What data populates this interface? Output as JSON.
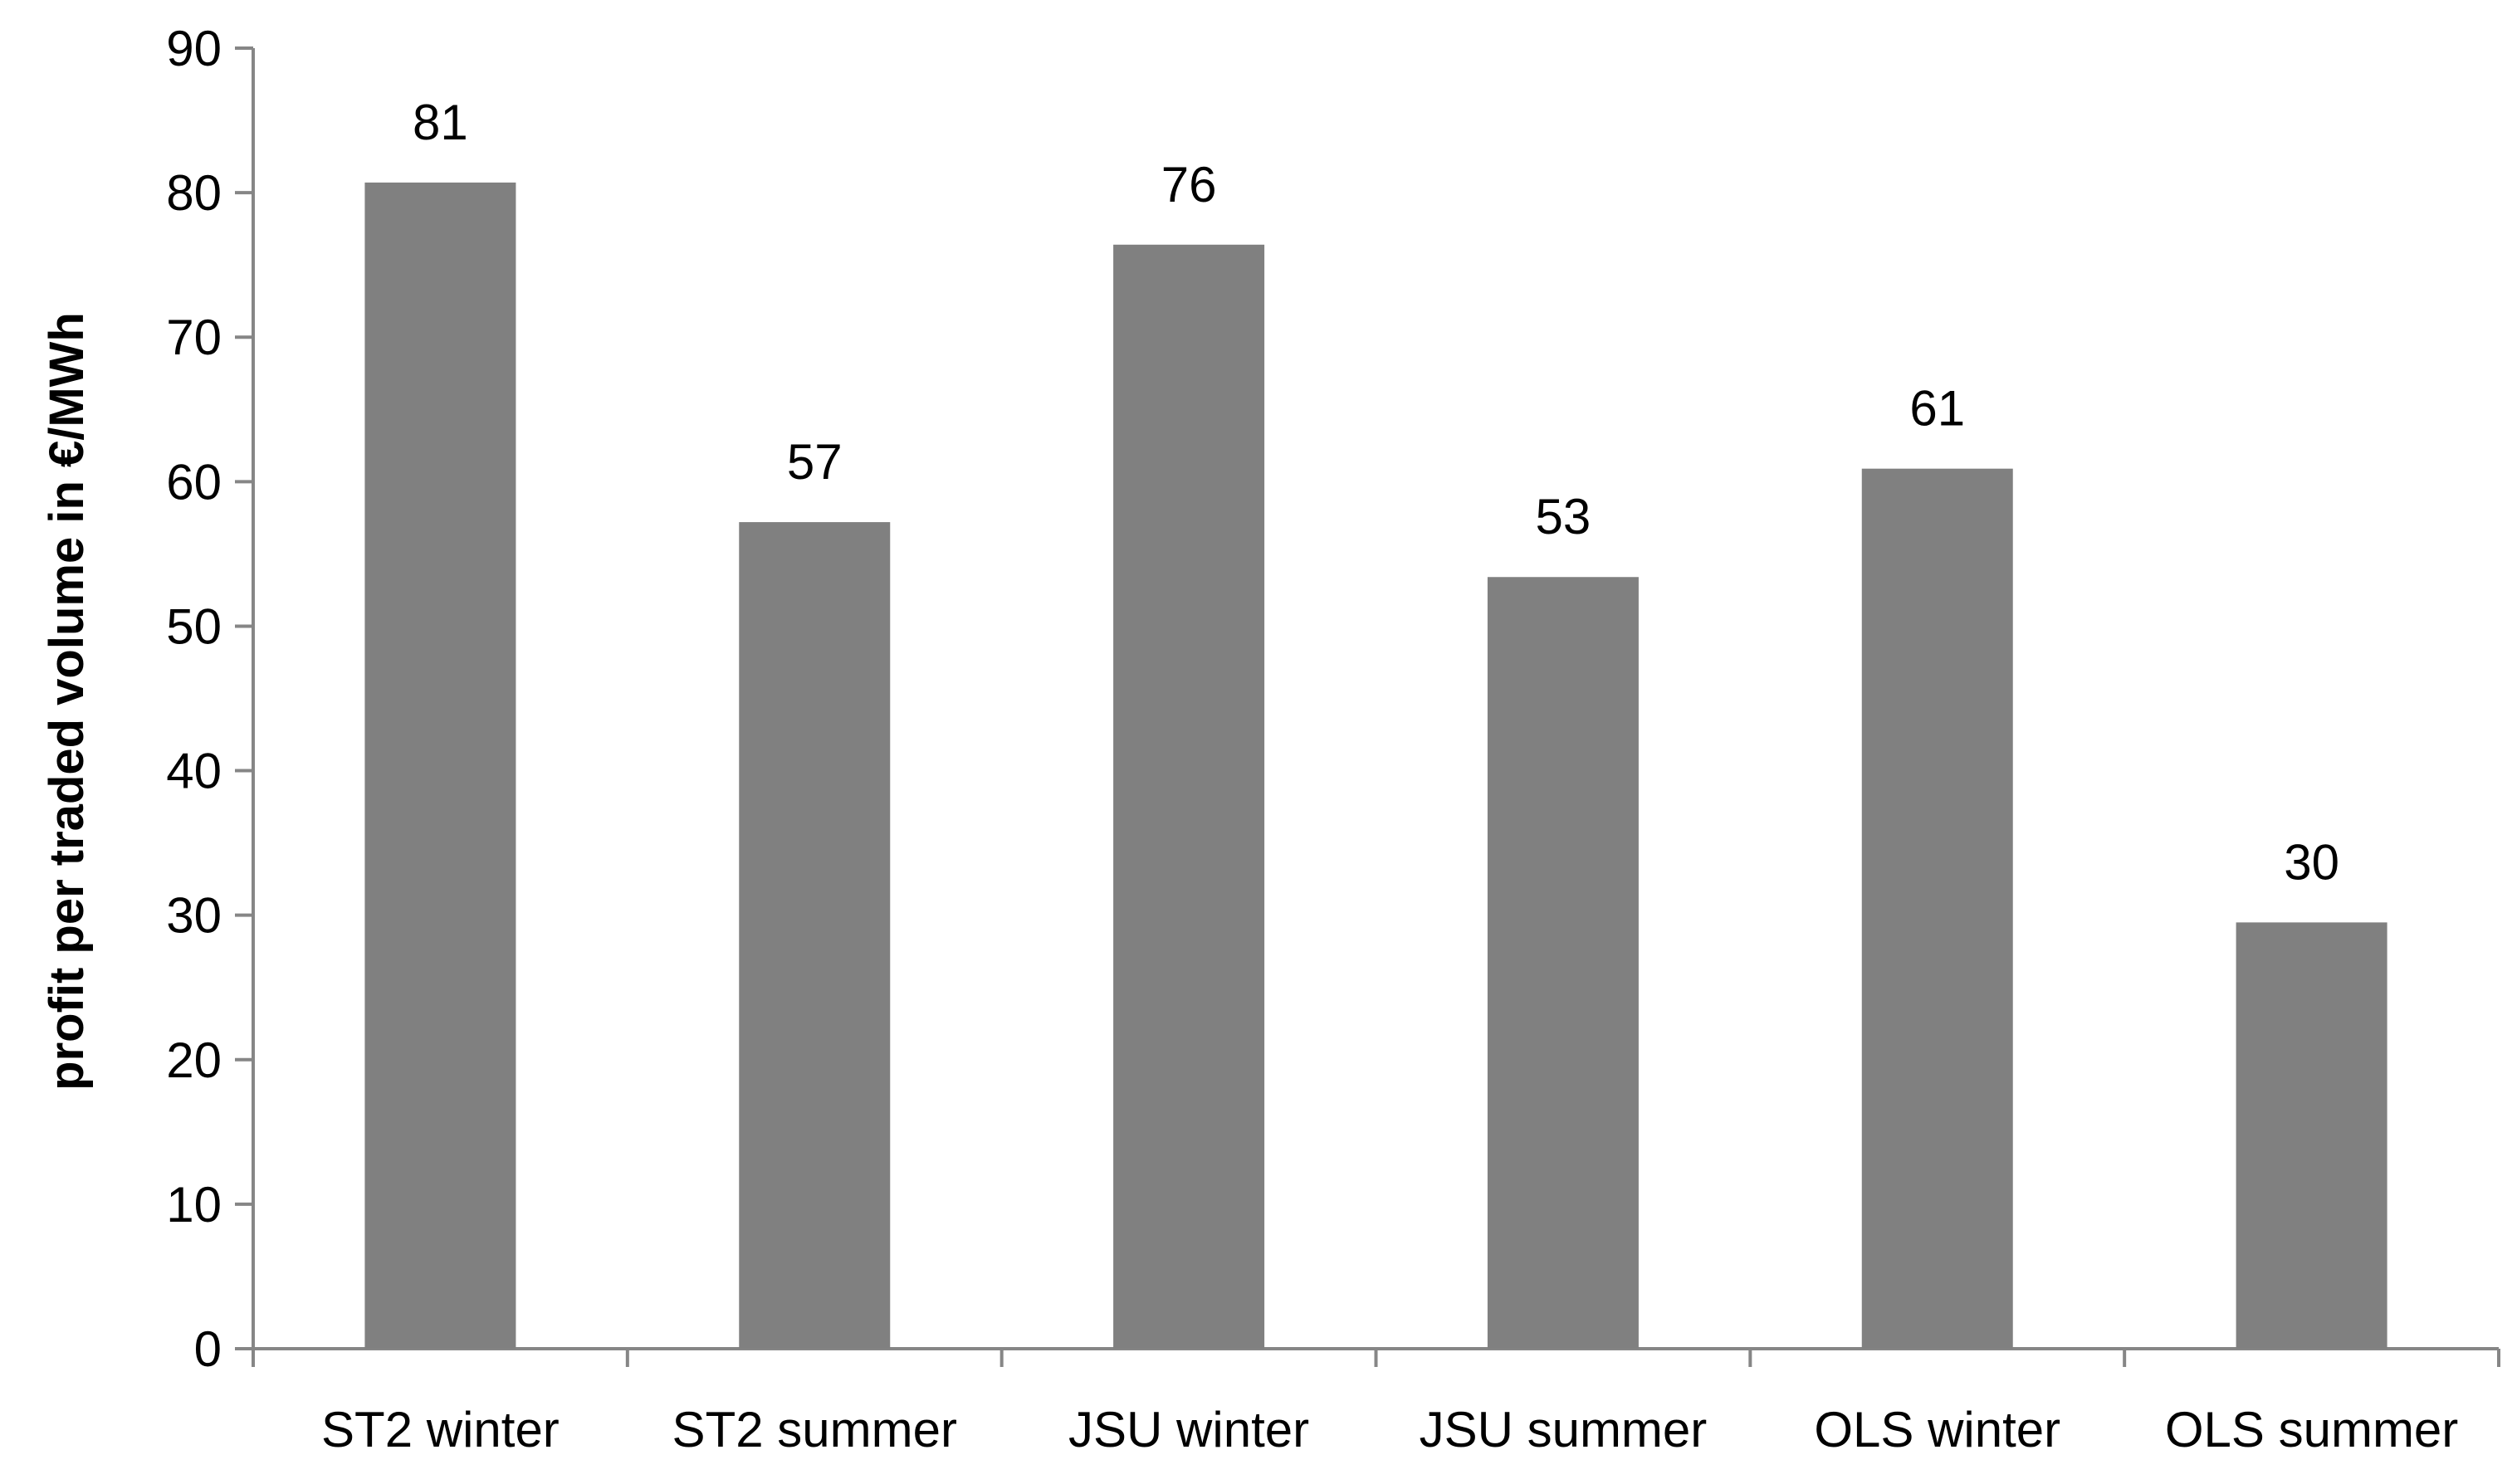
{
  "chart_data": {
    "type": "bar",
    "title": "",
    "xlabel": "",
    "ylabel": "profit per traded volume in €/MWh",
    "categories": [
      "ST2 winter",
      "ST2 summer",
      "JSU winter",
      "JSU summer",
      "OLS winter",
      "OLS summer"
    ],
    "values": [
      80.7,
      57.2,
      76.4,
      53.4,
      60.9,
      29.5
    ],
    "data_labels": [
      "81",
      "57",
      "76",
      "53",
      "61",
      "30"
    ],
    "ylim": [
      0,
      90
    ],
    "yticks": [
      0,
      10,
      20,
      30,
      40,
      50,
      60,
      70,
      80,
      90
    ],
    "grid": false,
    "legend": "none",
    "colors": {
      "bar": "#808080",
      "axis": "#868686",
      "text": "#000000"
    }
  }
}
